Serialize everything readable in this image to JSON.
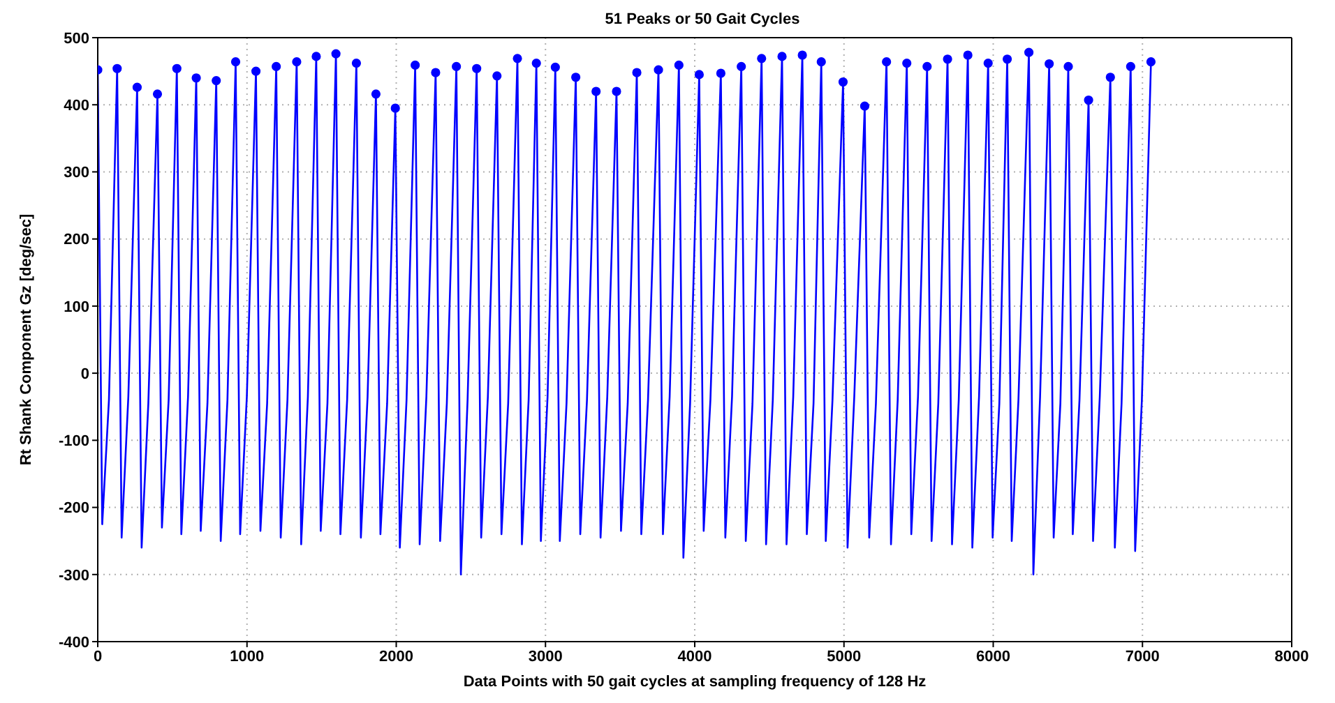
{
  "chart_data": {
    "type": "line",
    "title": "51 Peaks or 50 Gait Cycles",
    "xlabel": "Data Points with 50 gait cycles at sampling frequency of 128 Hz",
    "ylabel": "Rt Shank Component Gz [deg/sec]",
    "xlim": [
      0,
      8000
    ],
    "xticks": [
      0,
      1000,
      2000,
      3000,
      4000,
      5000,
      6000,
      7000,
      8000
    ],
    "ylim": [
      -400,
      500
    ],
    "yticks": [
      -400,
      -300,
      -200,
      -100,
      0,
      100,
      200,
      300,
      400,
      500
    ],
    "grid": true,
    "series": [
      {
        "color": "#0000ff",
        "marker": "none",
        "x": [
          0,
          30,
          75,
          130,
          160,
          205,
          264,
          294,
          339,
          400,
          430,
          475,
          530,
          560,
          605,
          660,
          690,
          735,
          794,
          824,
          869,
          924,
          954,
          999,
          1060,
          1090,
          1135,
          1196,
          1226,
          1271,
          1333,
          1363,
          1408,
          1464,
          1494,
          1539,
          1596,
          1626,
          1671,
          1733,
          1763,
          1808,
          1864,
          1894,
          1939,
          1994,
          2024,
          2069,
          2127,
          2157,
          2202,
          2264,
          2294,
          2339,
          2403,
          2433,
          2478,
          2539,
          2569,
          2614,
          2675,
          2705,
          2750,
          2812,
          2842,
          2887,
          2939,
          2969,
          3014,
          3066,
          3096,
          3141,
          3203,
          3233,
          3278,
          3339,
          3369,
          3414,
          3476,
          3506,
          3551,
          3612,
          3642,
          3687,
          3757,
          3787,
          3832,
          3894,
          3924,
          3969,
          4030,
          4060,
          4105,
          4175,
          4205,
          4250,
          4312,
          4342,
          4387,
          4448,
          4478,
          4523,
          4585,
          4615,
          4660,
          4721,
          4751,
          4796,
          4848,
          4878,
          4923,
          4994,
          5024,
          5069,
          5139,
          5169,
          5214,
          5285,
          5315,
          5360,
          5421,
          5451,
          5496,
          5557,
          5587,
          5632,
          5694,
          5724,
          5769,
          5830,
          5860,
          5905,
          5966,
          5996,
          6041,
          6094,
          6124,
          6169,
          6239,
          6269,
          6314,
          6375,
          6405,
          6450,
          6503,
          6533,
          6578,
          6639,
          6669,
          6714,
          6785,
          6815,
          6860,
          6921,
          6951,
          6996,
          7057
        ],
        "values": [
          452,
          -225,
          -40,
          454,
          -245,
          -35,
          426,
          -260,
          -45,
          416,
          -230,
          -40,
          454,
          -240,
          -35,
          440,
          -235,
          -45,
          436,
          -250,
          -40,
          464,
          -240,
          -35,
          450,
          -235,
          -45,
          457,
          -245,
          -40,
          464,
          -255,
          -35,
          472,
          -235,
          -45,
          476,
          -240,
          -40,
          462,
          -245,
          -35,
          416,
          -240,
          -45,
          395,
          -260,
          -40,
          459,
          -255,
          -35,
          448,
          -250,
          -45,
          457,
          -300,
          -40,
          454,
          -245,
          -35,
          443,
          -240,
          -45,
          469,
          -255,
          -40,
          462,
          -250,
          -35,
          456,
          -250,
          -45,
          441,
          -240,
          -40,
          420,
          -245,
          -35,
          420,
          -235,
          -45,
          448,
          -240,
          -40,
          452,
          -240,
          -35,
          459,
          -275,
          -45,
          445,
          -235,
          -40,
          447,
          -245,
          -35,
          457,
          -250,
          -45,
          469,
          -255,
          -40,
          472,
          -255,
          -35,
          474,
          -240,
          -45,
          464,
          -250,
          -40,
          434,
          -260,
          -35,
          398,
          -245,
          -45,
          464,
          -255,
          -40,
          462,
          -240,
          -35,
          457,
          -250,
          -45,
          468,
          -255,
          -40,
          474,
          -260,
          -35,
          462,
          -245,
          -45,
          468,
          -250,
          -40,
          478,
          -300,
          -35,
          461,
          -245,
          -45,
          457,
          -240,
          -40,
          407,
          -250,
          -35,
          441,
          -260,
          -45,
          457,
          -265,
          -40,
          464
        ]
      },
      {
        "type": "scatter",
        "color": "#0000ff",
        "marker": "circle",
        "x": [
          0,
          130,
          264,
          400,
          530,
          660,
          794,
          924,
          1060,
          1196,
          1333,
          1464,
          1596,
          1733,
          1864,
          1994,
          2127,
          2264,
          2403,
          2539,
          2675,
          2812,
          2939,
          3066,
          3203,
          3339,
          3476,
          3612,
          3757,
          3894,
          4030,
          4175,
          4312,
          4448,
          4585,
          4721,
          4848,
          4994,
          5139,
          5285,
          5421,
          5557,
          5694,
          5830,
          5966,
          6094,
          6239,
          6375,
          6503,
          6639,
          6785,
          6921,
          7057
        ],
        "values": [
          452,
          454,
          426,
          416,
          454,
          440,
          436,
          464,
          450,
          457,
          464,
          472,
          476,
          462,
          416,
          395,
          459,
          448,
          457,
          454,
          443,
          469,
          462,
          456,
          441,
          420,
          420,
          448,
          452,
          459,
          445,
          447,
          457,
          469,
          472,
          474,
          464,
          434,
          398,
          464,
          462,
          457,
          468,
          474,
          462,
          468,
          478,
          461,
          457,
          407,
          441,
          457,
          464
        ]
      }
    ]
  }
}
